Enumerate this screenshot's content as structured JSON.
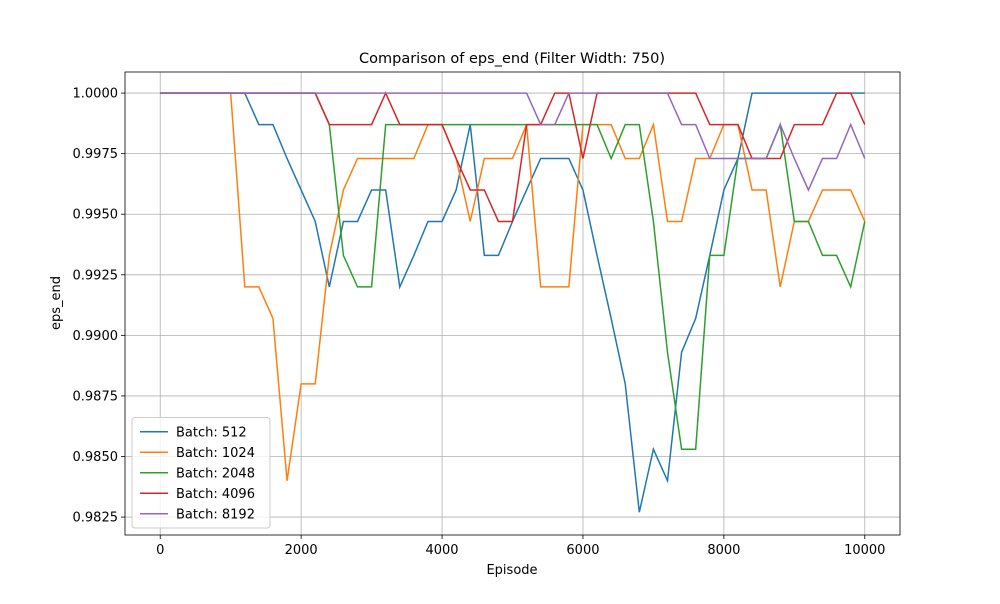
{
  "chart_data": {
    "type": "line",
    "title": "Comparison of eps_end (Filter Width: 750)",
    "x_label": "Episode",
    "y_label": "eps_end",
    "x": [
      0,
      200,
      400,
      600,
      800,
      1000,
      1200,
      1400,
      1600,
      1800,
      2000,
      2200,
      2400,
      2600,
      2800,
      3000,
      3200,
      3400,
      3600,
      3800,
      4000,
      4200,
      4400,
      4600,
      4800,
      5000,
      5200,
      5400,
      5600,
      5800,
      6000,
      6200,
      6400,
      6600,
      6800,
      7000,
      7200,
      7400,
      7600,
      7800,
      8000,
      8200,
      8400,
      8600,
      8800,
      9000,
      9200,
      9400,
      9600,
      9800,
      10000
    ],
    "series": [
      {
        "name": "Batch: 512",
        "color": "#1f77b4",
        "values": [
          1,
          1,
          1,
          1,
          1,
          1,
          1,
          0.9987,
          0.9987,
          0.9973,
          0.996,
          0.9947,
          0.992,
          0.9947,
          0.9947,
          0.996,
          0.996,
          0.992,
          0.9933,
          0.9947,
          0.9947,
          0.996,
          0.9987,
          0.9933,
          0.9933,
          0.9947,
          0.996,
          0.9973,
          0.9973,
          0.9973,
          0.996,
          0.9933,
          0.9907,
          0.988,
          0.9827,
          0.9853,
          0.984,
          0.9893,
          0.9907,
          0.9933,
          0.996,
          0.9973,
          1,
          1,
          1,
          1,
          1,
          1,
          1,
          1,
          1
        ]
      },
      {
        "name": "Batch: 1024",
        "color": "#ff7f0e",
        "values": [
          1,
          1,
          1,
          1,
          1,
          1,
          0.992,
          0.992,
          0.9907,
          0.984,
          0.988,
          0.988,
          0.9933,
          0.996,
          0.9973,
          0.9973,
          0.9973,
          0.9973,
          0.9973,
          0.9987,
          0.9987,
          0.9973,
          0.9947,
          0.9973,
          0.9973,
          0.9973,
          0.9987,
          0.992,
          0.992,
          0.992,
          0.9987,
          0.9987,
          0.9987,
          0.9973,
          0.9973,
          0.9987,
          0.9947,
          0.9947,
          0.9973,
          0.9973,
          0.9987,
          0.9987,
          0.996,
          0.996,
          0.992,
          0.9947,
          0.9947,
          0.996,
          0.996,
          0.996,
          0.9947
        ]
      },
      {
        "name": "Batch: 2048",
        "color": "#2ca02c",
        "values": [
          1,
          1,
          1,
          1,
          1,
          1,
          1,
          1,
          1,
          1,
          1,
          1,
          0.9987,
          0.9933,
          0.992,
          0.992,
          0.9987,
          0.9987,
          0.9987,
          0.9987,
          0.9987,
          0.9987,
          0.9987,
          0.9987,
          0.9987,
          0.9987,
          0.9987,
          0.9987,
          0.9987,
          0.9987,
          0.9987,
          0.9987,
          0.9973,
          0.9987,
          0.9987,
          0.9947,
          0.9893,
          0.9853,
          0.9853,
          0.9933,
          0.9933,
          0.9973,
          0.9973,
          0.9973,
          0.9987,
          0.9947,
          0.9947,
          0.9933,
          0.9933,
          0.992,
          0.9947
        ]
      },
      {
        "name": "Batch: 4096",
        "color": "#d62728",
        "values": [
          1,
          1,
          1,
          1,
          1,
          1,
          1,
          1,
          1,
          1,
          1,
          1,
          0.9987,
          0.9987,
          0.9987,
          0.9987,
          1,
          0.9987,
          0.9987,
          0.9987,
          0.9987,
          0.9973,
          0.996,
          0.996,
          0.9947,
          0.9947,
          0.9987,
          0.9987,
          1,
          1,
          0.9973,
          1,
          1,
          1,
          1,
          1,
          1,
          1,
          1,
          0.9987,
          0.9987,
          0.9987,
          0.9973,
          0.9973,
          0.9973,
          0.9987,
          0.9987,
          0.9987,
          1,
          1,
          0.9987
        ]
      },
      {
        "name": "Batch: 8192",
        "color": "#9467bd",
        "values": [
          1,
          1,
          1,
          1,
          1,
          1,
          1,
          1,
          1,
          1,
          1,
          1,
          1,
          1,
          1,
          1,
          1,
          1,
          1,
          1,
          1,
          1,
          1,
          1,
          1,
          1,
          1,
          0.9987,
          0.9987,
          1,
          1,
          1,
          1,
          1,
          1,
          1,
          1,
          0.9987,
          0.9987,
          0.9973,
          0.9973,
          0.9973,
          0.9973,
          0.9973,
          0.9987,
          0.9973,
          0.996,
          0.9973,
          0.9973,
          0.9987,
          0.9973
        ]
      }
    ],
    "xlim": [
      -500,
      10500
    ],
    "ylim": [
      0.98176,
      1.00087
    ],
    "xticks": [
      0,
      2000,
      4000,
      6000,
      8000,
      10000
    ],
    "yticks": [
      {
        "value": 0.9825,
        "label": "0.9825"
      },
      {
        "value": 0.985,
        "label": "0.9850"
      },
      {
        "value": 0.9875,
        "label": "0.9875"
      },
      {
        "value": 0.99,
        "label": "0.9900"
      },
      {
        "value": 0.9925,
        "label": "0.9925"
      },
      {
        "value": 0.995,
        "label": "0.9950"
      },
      {
        "value": 0.9975,
        "label": "0.9975"
      },
      {
        "value": 1,
        "label": "1.0000"
      }
    ],
    "grid": true,
    "legend": "lower left"
  }
}
